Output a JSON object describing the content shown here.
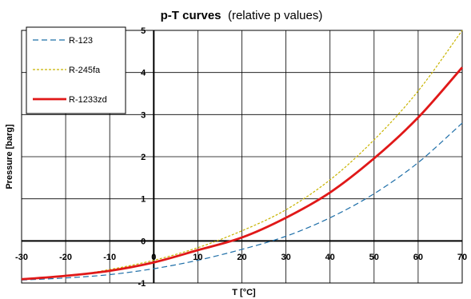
{
  "chart_data": {
    "type": "line",
    "title": "p-T curves",
    "subtitle": "(relative p values)",
    "xlabel": "T [°C]",
    "ylabel": "Pressure [barg]",
    "xlim": [
      -30,
      70
    ],
    "ylim": [
      -1,
      5
    ],
    "xticks": [
      -30,
      -20,
      -10,
      0,
      10,
      20,
      30,
      40,
      50,
      60,
      70
    ],
    "yticks": [
      -1,
      0,
      1,
      2,
      3,
      4,
      5
    ],
    "grid": true,
    "legend_position": "top-left",
    "x": [
      -30,
      -20,
      -10,
      0,
      10,
      20,
      30,
      40,
      50,
      60,
      70
    ],
    "series": [
      {
        "name": "R-123",
        "color": "#1f6fa8",
        "style": "dashed",
        "values": [
          -0.93,
          -0.88,
          -0.8,
          -0.66,
          -0.46,
          -0.2,
          0.11,
          0.55,
          1.12,
          1.86,
          2.8
        ]
      },
      {
        "name": "R-245fa",
        "color": "#c8b400",
        "style": "dotted",
        "values": [
          -0.91,
          -0.84,
          -0.68,
          -0.46,
          -0.16,
          0.24,
          0.74,
          1.45,
          2.4,
          3.56,
          5.0
        ]
      },
      {
        "name": "R-1233zd",
        "color": "#e01818",
        "style": "solid",
        "values": [
          -0.91,
          -0.83,
          -0.71,
          -0.51,
          -0.22,
          0.08,
          0.55,
          1.15,
          1.96,
          2.93,
          4.12
        ]
      }
    ]
  }
}
